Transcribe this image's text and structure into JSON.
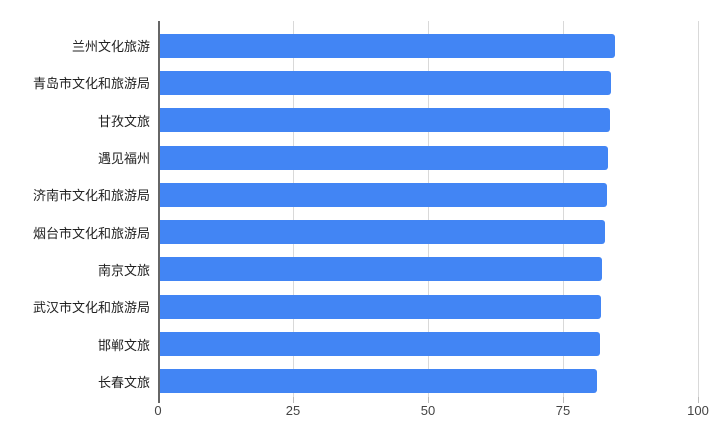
{
  "chart_data": {
    "type": "bar",
    "orientation": "horizontal",
    "title": "",
    "categories": [
      "兰州文化旅游",
      "青岛市文化和旅游局",
      "甘孜文旅",
      "遇见福州",
      "济南市文化和旅游局",
      "烟台市文化和旅游局",
      "南京文旅",
      "武汉市文化和旅游局",
      "邯郸文旅",
      "长春文旅"
    ],
    "values": [
      84.7,
      83.9,
      83.7,
      83.4,
      83.1,
      82.7,
      82.2,
      82.0,
      81.8,
      81.3
    ],
    "xticks": [
      0,
      25,
      50,
      75,
      100
    ],
    "xlim": [
      0,
      100
    ],
    "grid": true,
    "legend": "none",
    "colors": {
      "bar": "#4285f4",
      "gridline": "#d9d9d9",
      "baseline": "#666666",
      "axis_text": "#444444",
      "category_text": "#212121",
      "background": "#ffffff"
    }
  }
}
